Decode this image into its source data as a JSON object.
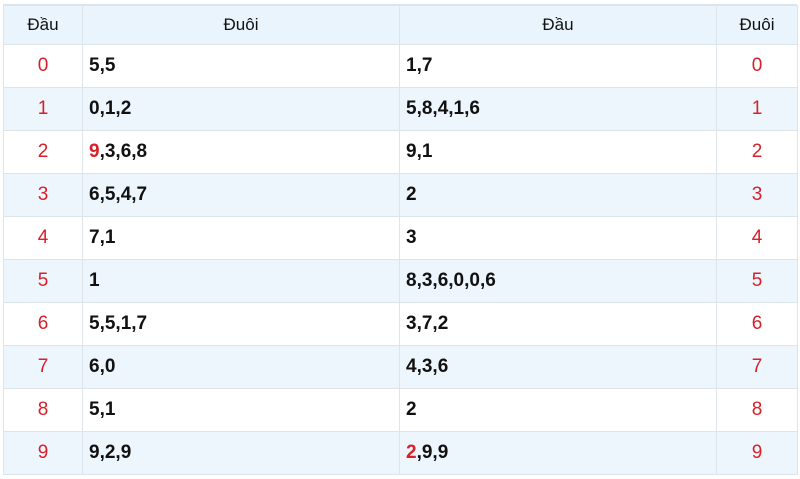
{
  "header": {
    "col1": "Đầu",
    "col2": "Đuôi",
    "col3": "Đầu",
    "col4": "Đuôi"
  },
  "colors": {
    "accent": "#d6202a",
    "header_bg": "#eaf4fc",
    "alt_row_bg": "#eef6fd"
  },
  "rows": [
    {
      "left": "0",
      "duoi": [
        {
          "t": "5,5"
        }
      ],
      "dau": [
        {
          "t": "1,7"
        }
      ],
      "right": "0"
    },
    {
      "left": "1",
      "duoi": [
        {
          "t": "0,1,2"
        }
      ],
      "dau": [
        {
          "t": "5,8,4,1,6"
        }
      ],
      "right": "1"
    },
    {
      "left": "2",
      "duoi": [
        {
          "t": "9",
          "hot": true
        },
        {
          "t": ",3,6,8"
        }
      ],
      "dau": [
        {
          "t": "9,1"
        }
      ],
      "right": "2"
    },
    {
      "left": "3",
      "duoi": [
        {
          "t": "6,5,4,7"
        }
      ],
      "dau": [
        {
          "t": "2"
        }
      ],
      "right": "3"
    },
    {
      "left": "4",
      "duoi": [
        {
          "t": "7,1"
        }
      ],
      "dau": [
        {
          "t": "3"
        }
      ],
      "right": "4"
    },
    {
      "left": "5",
      "duoi": [
        {
          "t": "1"
        }
      ],
      "dau": [
        {
          "t": "8,3,6,0,0,6"
        }
      ],
      "right": "5"
    },
    {
      "left": "6",
      "duoi": [
        {
          "t": "5,5,1,7"
        }
      ],
      "dau": [
        {
          "t": "3,7,2"
        }
      ],
      "right": "6"
    },
    {
      "left": "7",
      "duoi": [
        {
          "t": "6,0"
        }
      ],
      "dau": [
        {
          "t": "4,3,6"
        }
      ],
      "right": "7"
    },
    {
      "left": "8",
      "duoi": [
        {
          "t": "5,1"
        }
      ],
      "dau": [
        {
          "t": "2"
        }
      ],
      "right": "8"
    },
    {
      "left": "9",
      "duoi": [
        {
          "t": "9,2,9"
        }
      ],
      "dau": [
        {
          "t": "2",
          "hot": true
        },
        {
          "t": ",9,9"
        }
      ],
      "right": "9"
    }
  ]
}
